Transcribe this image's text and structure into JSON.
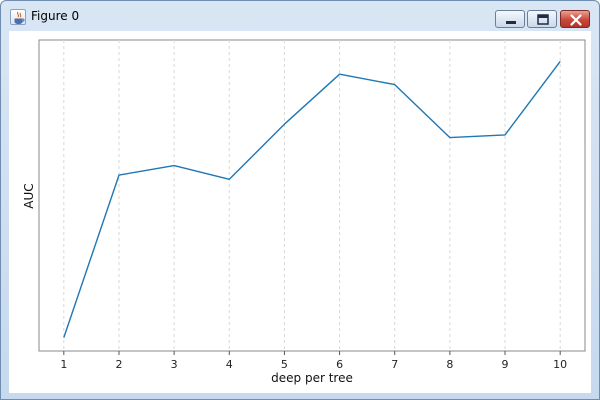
{
  "window": {
    "title": "Figure 0"
  },
  "icons": {
    "app": "java-icon",
    "minimize": "minimize-icon",
    "maximize": "maximize-icon",
    "close": "close-icon"
  },
  "chart_data": {
    "type": "line",
    "title": "",
    "xlabel": "deep per tree",
    "ylabel": "AUC",
    "x": [
      1,
      2,
      3,
      4,
      5,
      6,
      7,
      8,
      9,
      10
    ],
    "series": [
      {
        "values": [
          0.0,
          0.546,
          0.578,
          0.532,
          0.717,
          0.885,
          0.85,
          0.672,
          0.681,
          0.928
        ],
        "color": "#1f77b4"
      }
    ],
    "xlim": [
      0.55,
      10.45
    ],
    "ylim": [
      -0.045,
      1.0
    ],
    "x_ticks": [
      "1",
      "2",
      "3",
      "4",
      "5",
      "6",
      "7",
      "8",
      "9",
      "10"
    ],
    "y_ticks": [],
    "grid": {
      "x": true,
      "y": false
    },
    "legend": "none"
  }
}
